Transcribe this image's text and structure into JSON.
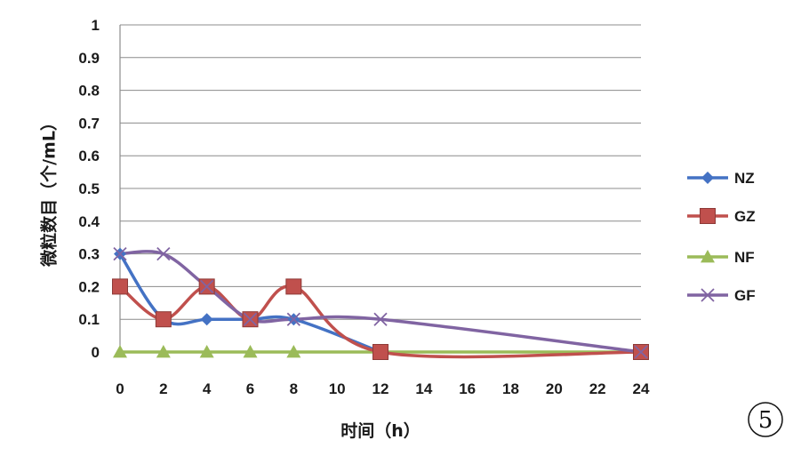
{
  "chart_data": {
    "type": "line",
    "x": [
      0,
      2,
      4,
      6,
      8,
      10,
      12,
      14,
      16,
      18,
      20,
      22,
      24
    ],
    "x_tick_labels": [
      "0",
      "2",
      "4",
      "6",
      "8",
      "10",
      "12",
      "14",
      "16",
      "18",
      "20",
      "22",
      "24"
    ],
    "y_tick_labels": [
      "0",
      "0.1",
      "0.2",
      "0.3",
      "0.4",
      "0.5",
      "0.6",
      "0.7",
      "0.8",
      "0.9",
      "1"
    ],
    "ylim": [
      0,
      1
    ],
    "xlabel": "时间（h）",
    "ylabel": "微粒数目（个/mL）",
    "grid": true,
    "legend_position": "right",
    "series": [
      {
        "name": "NZ",
        "color": "#4472C4",
        "marker": "diamond",
        "x": [
          0,
          2,
          4,
          6,
          8,
          12
        ],
        "values": [
          0.3,
          0.1,
          0.1,
          0.1,
          0.1,
          0
        ]
      },
      {
        "name": "GZ",
        "color": "#C0504D",
        "marker": "square",
        "x": [
          0,
          2,
          4,
          6,
          8,
          12,
          24
        ],
        "values": [
          0.2,
          0.1,
          0.2,
          0.1,
          0.2,
          0,
          0
        ]
      },
      {
        "name": "NF",
        "color": "#9BBB59",
        "marker": "triangle",
        "x": [
          0,
          2,
          4,
          6,
          8,
          12,
          24
        ],
        "values": [
          0,
          0,
          0,
          0,
          0,
          0,
          0
        ]
      },
      {
        "name": "GF",
        "color": "#8064A2",
        "marker": "x",
        "x": [
          0,
          2,
          4,
          6,
          8,
          12,
          24
        ],
        "values": [
          0.3,
          0.3,
          0.2,
          0.1,
          0.1,
          0.1,
          0
        ]
      }
    ]
  },
  "corner_label": "5"
}
